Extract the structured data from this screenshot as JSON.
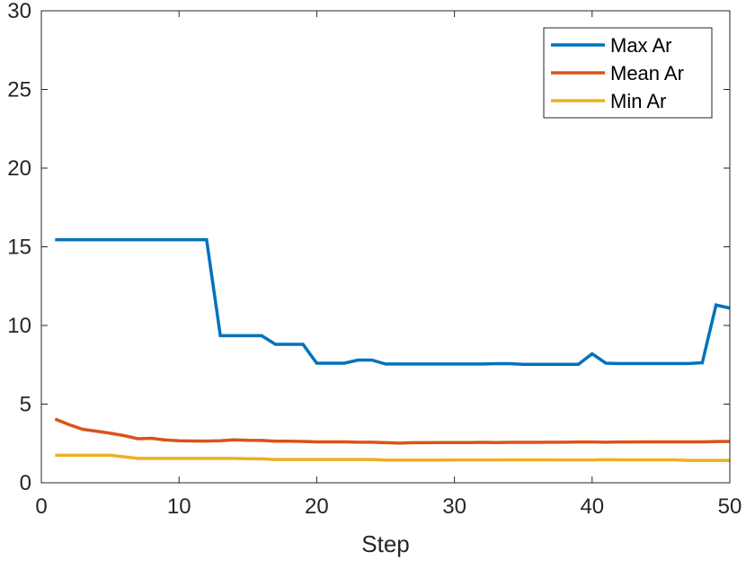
{
  "chart_data": {
    "type": "line",
    "xlabel": "Step",
    "ylabel": "",
    "xlim": [
      0,
      50
    ],
    "ylim": [
      0,
      30
    ],
    "xticks": [
      0,
      10,
      20,
      30,
      40,
      50
    ],
    "yticks": [
      0,
      5,
      10,
      15,
      20,
      25,
      30
    ],
    "grid": false,
    "legend_position": "top-right",
    "x": [
      1,
      2,
      3,
      4,
      5,
      6,
      7,
      8,
      9,
      10,
      11,
      12,
      13,
      14,
      15,
      16,
      17,
      18,
      19,
      20,
      21,
      22,
      23,
      24,
      25,
      26,
      27,
      28,
      29,
      30,
      31,
      32,
      33,
      34,
      35,
      36,
      37,
      38,
      39,
      40,
      41,
      42,
      43,
      44,
      45,
      46,
      47,
      48,
      49,
      50
    ],
    "series": [
      {
        "name": "Max Ar",
        "color": "#0072BD",
        "values": [
          15.45,
          15.45,
          15.45,
          15.45,
          15.45,
          15.45,
          15.45,
          15.45,
          15.45,
          15.45,
          15.45,
          15.45,
          9.35,
          9.35,
          9.35,
          9.35,
          8.8,
          8.8,
          8.8,
          7.6,
          7.6,
          7.6,
          7.8,
          7.8,
          7.55,
          7.55,
          7.55,
          7.55,
          7.55,
          7.55,
          7.55,
          7.55,
          7.57,
          7.57,
          7.53,
          7.53,
          7.53,
          7.53,
          7.53,
          8.2,
          7.6,
          7.58,
          7.58,
          7.58,
          7.58,
          7.58,
          7.58,
          7.63,
          11.3,
          11.1
        ]
      },
      {
        "name": "Mean Ar",
        "color": "#D95319",
        "values": [
          4.05,
          3.7,
          3.4,
          3.28,
          3.15,
          3.0,
          2.8,
          2.83,
          2.72,
          2.67,
          2.66,
          2.65,
          2.67,
          2.73,
          2.7,
          2.69,
          2.64,
          2.64,
          2.63,
          2.6,
          2.6,
          2.6,
          2.58,
          2.58,
          2.55,
          2.52,
          2.55,
          2.55,
          2.56,
          2.56,
          2.56,
          2.57,
          2.56,
          2.57,
          2.57,
          2.57,
          2.58,
          2.58,
          2.59,
          2.59,
          2.58,
          2.59,
          2.59,
          2.6,
          2.6,
          2.6,
          2.6,
          2.6,
          2.62,
          2.63
        ]
      },
      {
        "name": "Min Ar",
        "color": "#EDB120",
        "values": [
          1.75,
          1.75,
          1.75,
          1.75,
          1.75,
          1.65,
          1.55,
          1.55,
          1.55,
          1.55,
          1.55,
          1.55,
          1.55,
          1.55,
          1.53,
          1.52,
          1.48,
          1.48,
          1.48,
          1.48,
          1.48,
          1.48,
          1.48,
          1.48,
          1.44,
          1.44,
          1.44,
          1.44,
          1.44,
          1.45,
          1.45,
          1.45,
          1.45,
          1.46,
          1.46,
          1.46,
          1.46,
          1.45,
          1.45,
          1.45,
          1.47,
          1.46,
          1.46,
          1.46,
          1.46,
          1.46,
          1.42,
          1.42,
          1.42,
          1.42
        ]
      }
    ]
  }
}
